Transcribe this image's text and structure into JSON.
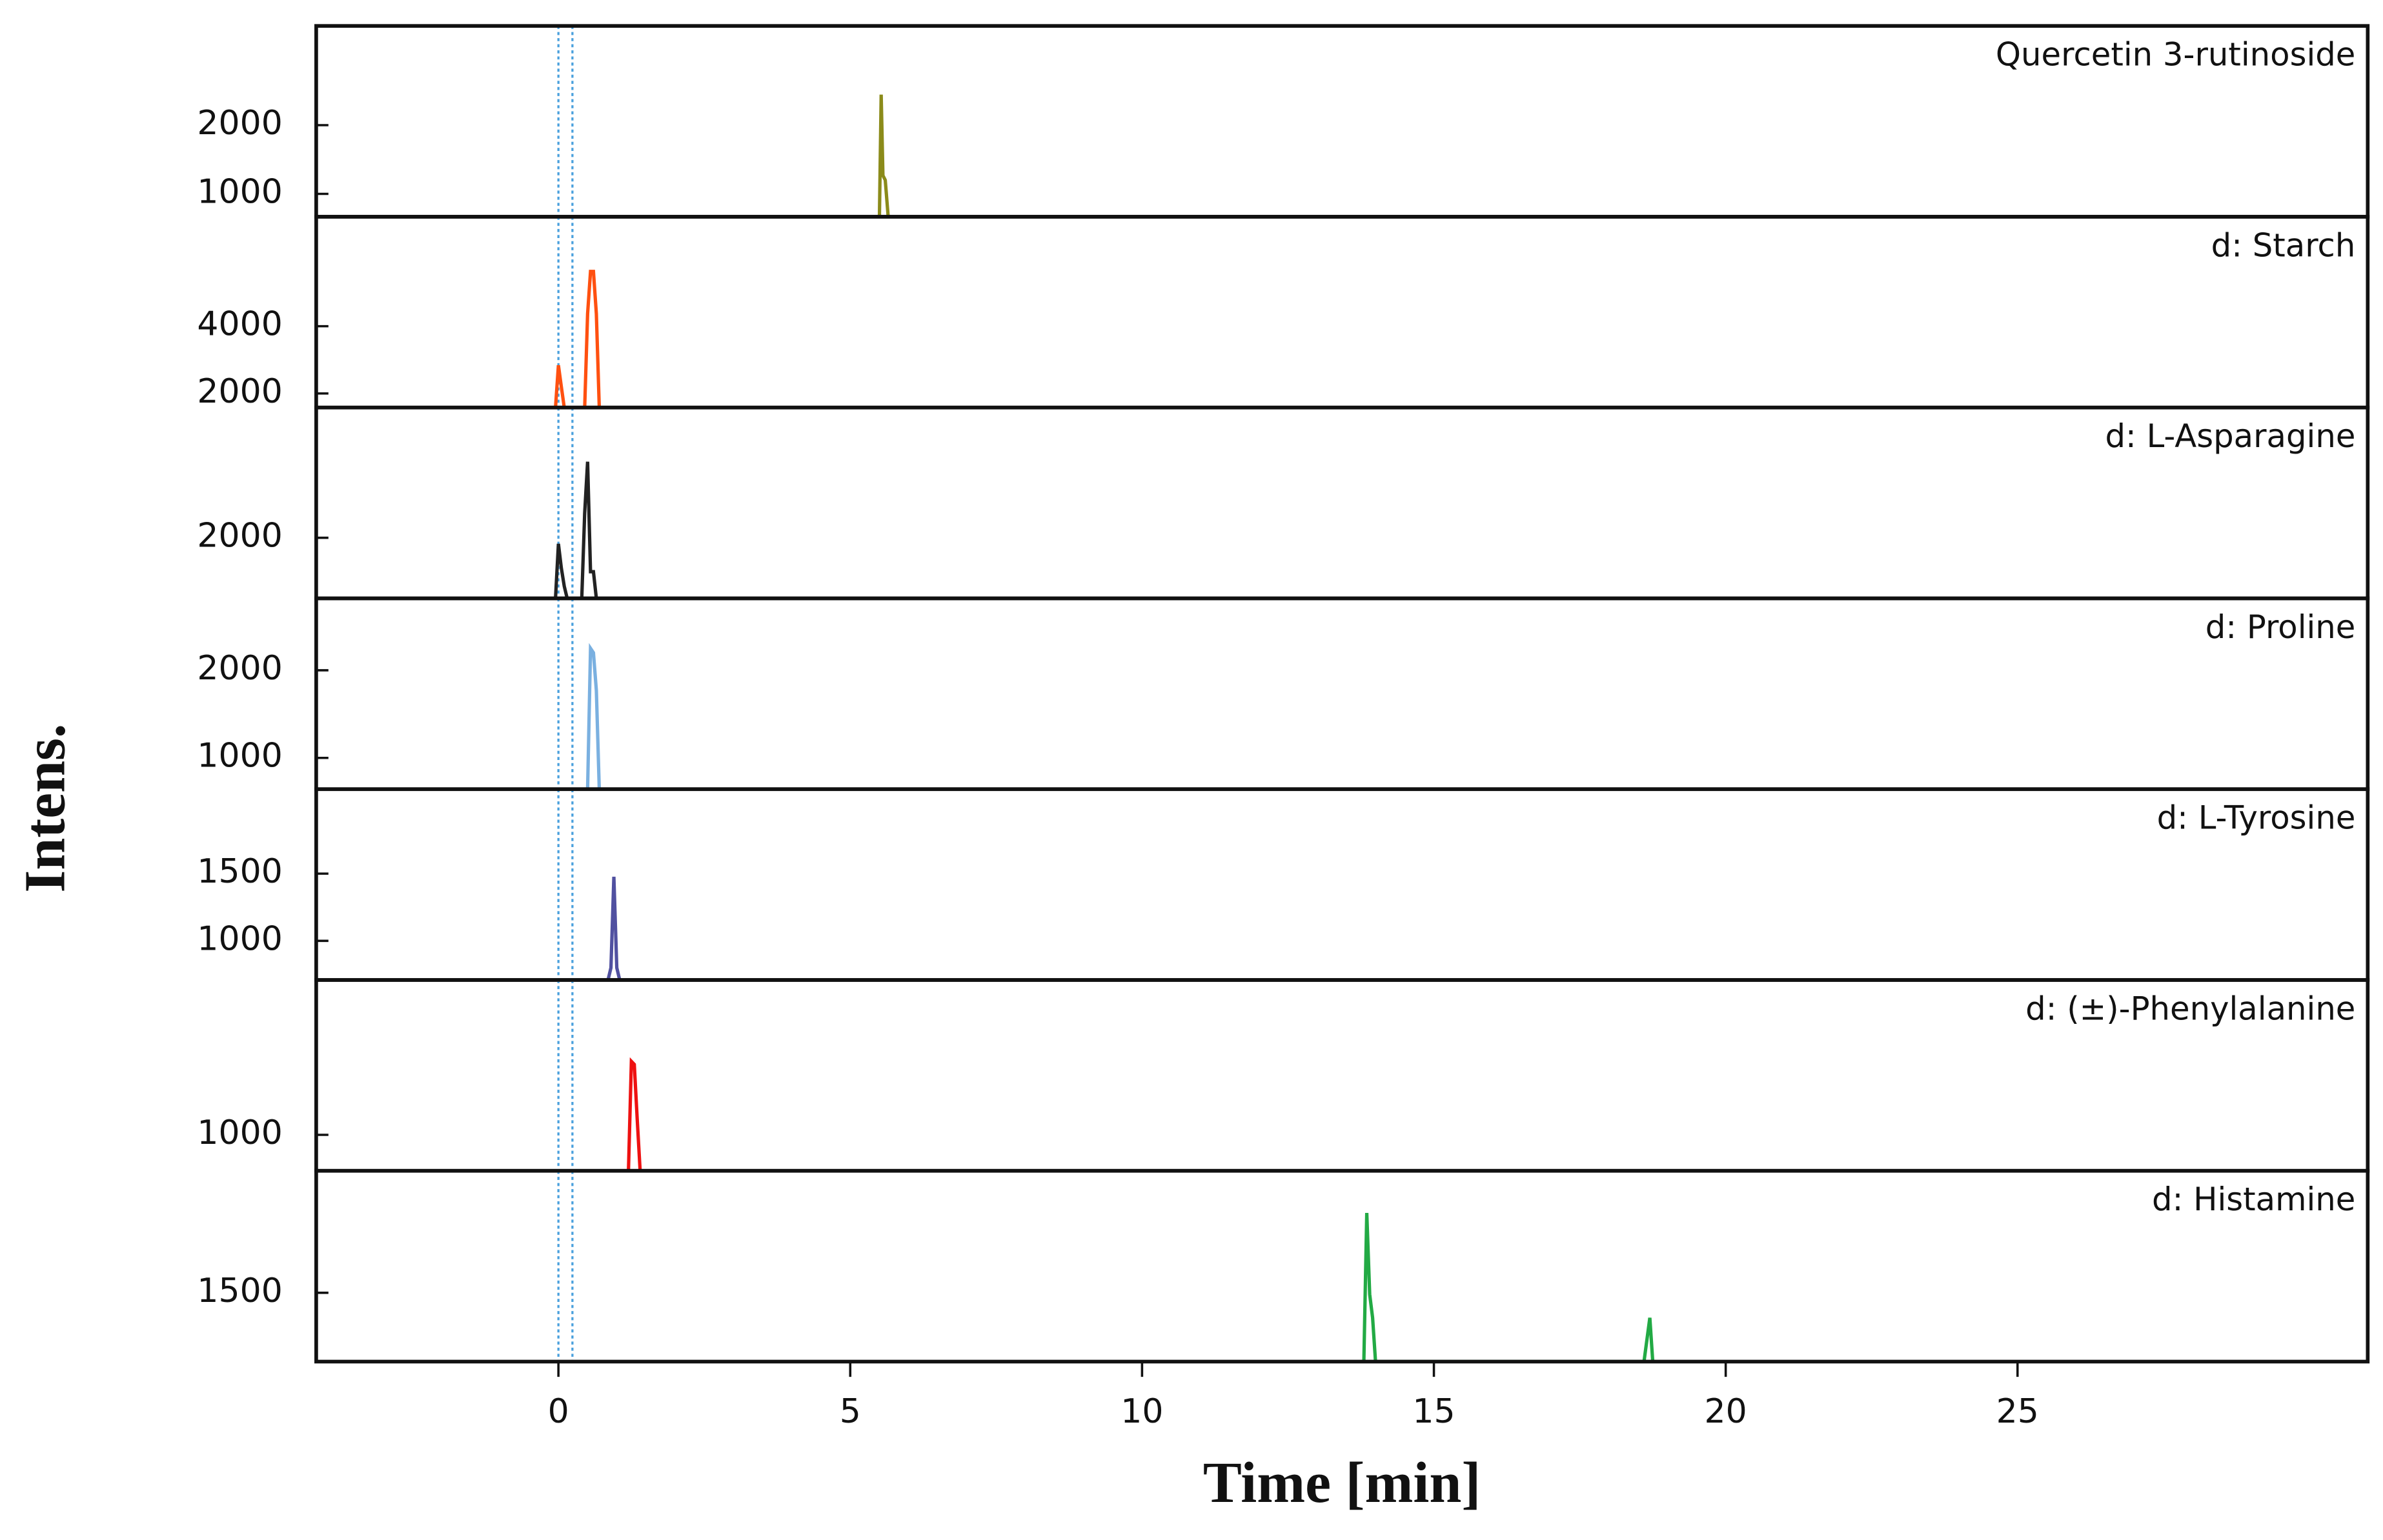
{
  "ylabel": "Intens.",
  "chart_data": [
    {
      "type": "line",
      "title": "Quercetin 3-rutinoside",
      "color": "#8b8b1a",
      "x": [
        5.45,
        5.5,
        5.53,
        5.56,
        5.6,
        5.65,
        5.7
      ],
      "values": [
        667,
        667,
        2444,
        1267,
        1200,
        667,
        667
      ],
      "xlim": [
        -4.15,
        31
      ],
      "ylim": [
        667,
        3444
      ],
      "yticks": [
        1000,
        2000
      ],
      "vlines": [
        0,
        0.24
      ]
    },
    {
      "type": "line",
      "title": "d: Starch",
      "color": "#ff5010",
      "x": [
        -0.05,
        0.0,
        0.05,
        0.1,
        0.45,
        0.5,
        0.55,
        0.6,
        0.65,
        0.7
      ],
      "values": [
        1581,
        2837,
        2200,
        1581,
        1581,
        4370,
        5628,
        5628,
        4370,
        1581
      ],
      "xlim": [
        -4.15,
        31
      ],
      "ylim": [
        1581,
        7256
      ],
      "yticks": [
        2000,
        4000
      ],
      "vlines": [
        0,
        0.24
      ]
    },
    {
      "type": "line",
      "title": "d: L-Asparagine",
      "color": "#222222",
      "x": [
        -0.05,
        0.0,
        0.05,
        0.1,
        0.15,
        0.4,
        0.45,
        0.5,
        0.55,
        0.6,
        0.65
      ],
      "values": [
        1000,
        1900,
        1500,
        1200,
        1000,
        1000,
        2410,
        3256,
        1440,
        1440,
        1000
      ],
      "xlim": [
        -4.15,
        31
      ],
      "ylim": [
        1000,
        4150
      ],
      "yticks": [
        2000
      ],
      "vlines": [
        0,
        0.24
      ]
    },
    {
      "type": "line",
      "title": "d: Proline",
      "color": "#7ab0e0",
      "x": [
        0.45,
        0.5,
        0.55,
        0.6,
        0.65,
        0.7,
        0.75
      ],
      "values": [
        643,
        643,
        2250,
        2200,
        1770,
        643,
        643
      ],
      "xlim": [
        -4.15,
        31
      ],
      "ylim": [
        643,
        2821
      ],
      "yticks": [
        1000,
        2000
      ],
      "vlines": [
        0,
        0.24
      ]
    },
    {
      "type": "line",
      "title": "d: L-Tyrosine",
      "color": "#5050a0",
      "x": [
        0.85,
        0.9,
        0.95,
        1.0,
        1.05
      ],
      "values": [
        709,
        800,
        1477,
        800,
        709
      ],
      "xlim": [
        -4.15,
        31
      ],
      "ylim": [
        709,
        2128
      ],
      "yticks": [
        1000,
        1500
      ],
      "vlines": [
        0,
        0.24
      ]
    },
    {
      "type": "line",
      "title": "d: (±)-Phenylalanine",
      "color": "#ee1111",
      "x": [
        1.15,
        1.2,
        1.25,
        1.3,
        1.35,
        1.4,
        1.45
      ],
      "values": [
        617,
        617,
        1783,
        1750,
        1167,
        617,
        617
      ],
      "xlim": [
        -4.15,
        31
      ],
      "ylim": [
        617,
        2650
      ],
      "yticks": [
        1000
      ],
      "vlines": [
        0,
        0.24
      ]
    },
    {
      "type": "line",
      "title": "d: Histamine",
      "color": "#22aa44",
      "x": [
        13.75,
        13.8,
        13.85,
        13.9,
        13.95,
        14.0,
        18.55,
        18.6,
        18.7,
        18.75,
        18.8
      ],
      "values": [
        950,
        950,
        2138,
        1488,
        1300,
        950,
        950,
        950,
        1300,
        950,
        950
      ],
      "xlim": [
        -4.15,
        31
      ],
      "ylim": [
        950,
        2475
      ],
      "yticks": [
        1500
      ],
      "vlines": [
        0,
        0.24
      ],
      "xticks": [
        0,
        5,
        10,
        15,
        20,
        25
      ],
      "xlabel": "Time [min]"
    }
  ]
}
